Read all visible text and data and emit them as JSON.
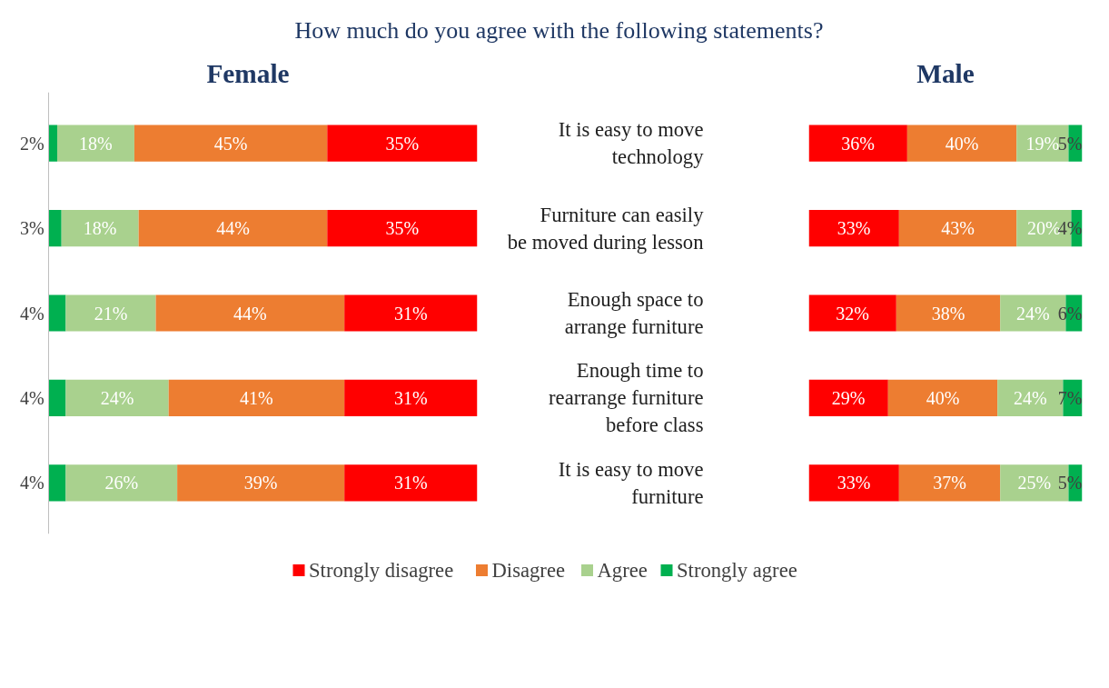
{
  "chart_data": [
    {
      "type": "bar",
      "orientation": "horizontal",
      "stacked": true,
      "title": "How much do you agree with the following statements?",
      "subtitle": "Female",
      "categories": [
        "It is easy to move technology",
        "Furniture can easily be moved during lesson",
        "Enough space to arrange furniture",
        "Enough time to rearrange furniture before class",
        "It is easy to move furniture"
      ],
      "tick_labels": false,
      "legend": "bottom",
      "series": [
        {
          "name": "Strongly agree",
          "color": "#00b050",
          "values": [
            2,
            3,
            4,
            4,
            4
          ],
          "value_labels": [
            "2%",
            "3%",
            "4%",
            "4%",
            "4%"
          ]
        },
        {
          "name": "Agree",
          "color": "#a9d18e",
          "values": [
            18,
            18,
            21,
            24,
            26
          ],
          "value_labels": [
            "18%",
            "18%",
            "21%",
            "24%",
            "26%"
          ]
        },
        {
          "name": "Disagree",
          "color": "#ed7d31",
          "values": [
            45,
            44,
            44,
            41,
            39
          ],
          "value_labels": [
            "45%",
            "44%",
            "44%",
            "41%",
            "39%"
          ]
        },
        {
          "name": "Strongly disagree",
          "color": "#ff0000",
          "values": [
            35,
            35,
            31,
            31,
            31
          ],
          "value_labels": [
            "35%",
            "35%",
            "31%",
            "31%",
            "31%"
          ]
        }
      ]
    },
    {
      "type": "bar",
      "orientation": "horizontal",
      "stacked": true,
      "subtitle": "Male",
      "categories": [
        "It is easy to move technology",
        "Furniture can easily be moved during lesson",
        "Enough space to arrange furniture",
        "Enough time to rearrange furniture before class",
        "It is easy to move furniture"
      ],
      "tick_labels": "y",
      "legend": "bottom",
      "series": [
        {
          "name": "Strongly disagree",
          "color": "#ff0000",
          "values": [
            36,
            33,
            32,
            29,
            33
          ],
          "value_labels": [
            "36%",
            "33%",
            "32%",
            "29%",
            "33%"
          ]
        },
        {
          "name": "Disagree",
          "color": "#ed7d31",
          "values": [
            40,
            43,
            38,
            40,
            37
          ],
          "value_labels": [
            "40%",
            "43%",
            "38%",
            "40%",
            "37%"
          ]
        },
        {
          "name": "Agree",
          "color": "#a9d18e",
          "values": [
            19,
            20,
            24,
            24,
            25
          ],
          "value_labels": [
            "19%",
            "20%",
            "24%",
            "24%",
            "25%"
          ]
        },
        {
          "name": "Strongly agree",
          "color": "#00b050",
          "values": [
            5,
            4,
            6,
            7,
            5
          ],
          "value_labels": [
            "5%",
            "4%",
            "6%",
            "7%",
            "5%"
          ]
        }
      ]
    }
  ]
}
